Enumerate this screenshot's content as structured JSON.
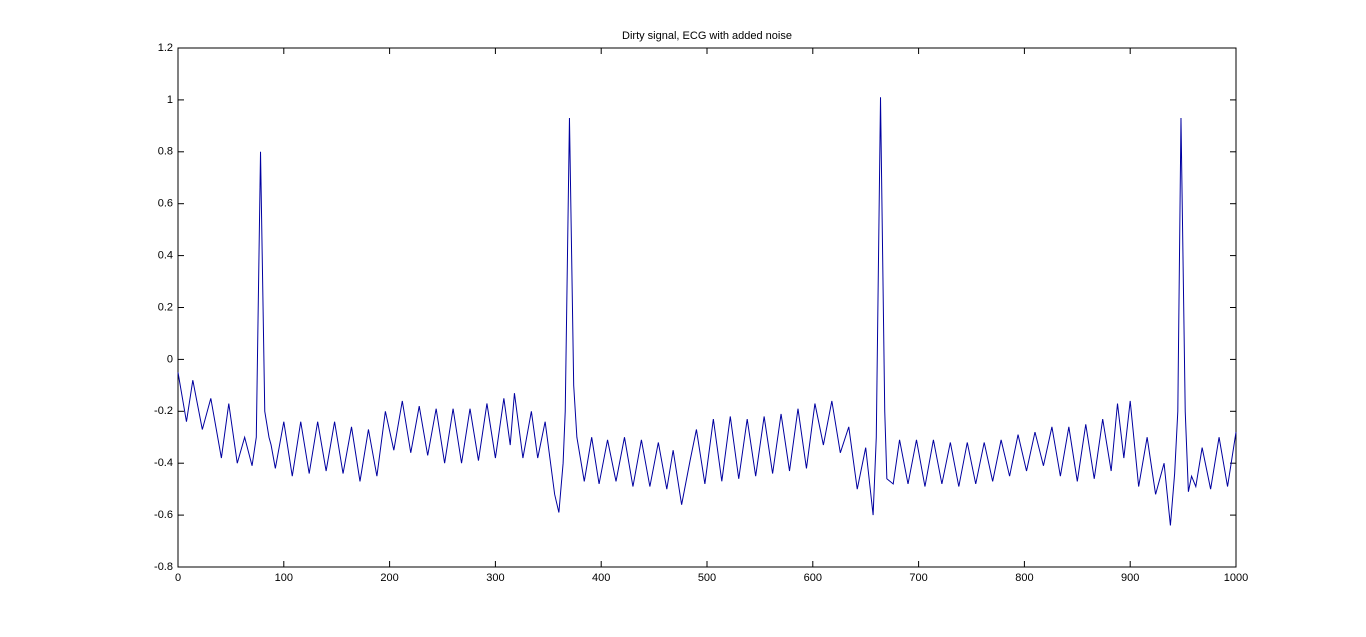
{
  "chart_data": {
    "type": "line",
    "title": "Dirty signal, ECG with added noise",
    "x": [
      0,
      8,
      14,
      23,
      31,
      41,
      48,
      56,
      63,
      70,
      74,
      78,
      82,
      86,
      88,
      92,
      100,
      108,
      116,
      124,
      132,
      140,
      148,
      156,
      164,
      172,
      180,
      188,
      196,
      204,
      212,
      220,
      228,
      236,
      244,
      252,
      260,
      268,
      276,
      284,
      292,
      300,
      308,
      314,
      318,
      326,
      334,
      340,
      347,
      356,
      360,
      364,
      366,
      370,
      374,
      377,
      384,
      391,
      398,
      406,
      414,
      422,
      430,
      438,
      446,
      454,
      462,
      468,
      476,
      484,
      490,
      498,
      506,
      514,
      522,
      530,
      538,
      546,
      554,
      562,
      570,
      578,
      586,
      594,
      602,
      610,
      618,
      626,
      634,
      642,
      650,
      657,
      660,
      664,
      668,
      670,
      676,
      682,
      690,
      698,
      706,
      714,
      722,
      730,
      738,
      746,
      754,
      762,
      770,
      778,
      786,
      794,
      802,
      810,
      818,
      826,
      834,
      842,
      850,
      858,
      866,
      874,
      882,
      888,
      894,
      900,
      908,
      916,
      924,
      932,
      938,
      942,
      945,
      948,
      952,
      955,
      958,
      962,
      968,
      976,
      984,
      992,
      1000
    ],
    "values": [
      -0.05,
      -0.24,
      -0.08,
      -0.27,
      -0.15,
      -0.38,
      -0.17,
      -0.4,
      -0.3,
      -0.41,
      -0.3,
      0.8,
      -0.2,
      -0.3,
      -0.33,
      -0.42,
      -0.24,
      -0.45,
      -0.24,
      -0.44,
      -0.24,
      -0.43,
      -0.24,
      -0.44,
      -0.26,
      -0.47,
      -0.27,
      -0.45,
      -0.2,
      -0.35,
      -0.16,
      -0.36,
      -0.18,
      -0.37,
      -0.19,
      -0.4,
      -0.19,
      -0.4,
      -0.19,
      -0.39,
      -0.17,
      -0.38,
      -0.15,
      -0.33,
      -0.13,
      -0.38,
      -0.2,
      -0.38,
      -0.24,
      -0.52,
      -0.59,
      -0.4,
      -0.2,
      0.93,
      -0.1,
      -0.3,
      -0.47,
      -0.3,
      -0.48,
      -0.31,
      -0.47,
      -0.3,
      -0.49,
      -0.31,
      -0.49,
      -0.32,
      -0.5,
      -0.35,
      -0.56,
      -0.39,
      -0.27,
      -0.48,
      -0.23,
      -0.47,
      -0.22,
      -0.46,
      -0.23,
      -0.45,
      -0.22,
      -0.44,
      -0.21,
      -0.43,
      -0.19,
      -0.42,
      -0.17,
      -0.33,
      -0.16,
      -0.36,
      -0.26,
      -0.5,
      -0.34,
      -0.6,
      -0.3,
      1.01,
      -0.2,
      -0.46,
      -0.48,
      -0.31,
      -0.48,
      -0.31,
      -0.49,
      -0.31,
      -0.48,
      -0.32,
      -0.49,
      -0.32,
      -0.48,
      -0.32,
      -0.47,
      -0.31,
      -0.45,
      -0.29,
      -0.43,
      -0.28,
      -0.41,
      -0.26,
      -0.45,
      -0.26,
      -0.47,
      -0.25,
      -0.46,
      -0.23,
      -0.43,
      -0.17,
      -0.38,
      -0.16,
      -0.49,
      -0.3,
      -0.52,
      -0.4,
      -0.64,
      -0.44,
      -0.2,
      0.93,
      -0.2,
      -0.51,
      -0.45,
      -0.49,
      -0.34,
      -0.5,
      -0.3,
      -0.49,
      -0.28
    ],
    "color": "#0000a0",
    "xlim": [
      0,
      1000
    ],
    "xticks": [
      0,
      100,
      200,
      300,
      400,
      500,
      600,
      700,
      800,
      900,
      1000
    ],
    "ylim": [
      -0.8,
      1.2
    ],
    "yticks": [
      -0.8,
      -0.6,
      -0.4,
      -0.2,
      0,
      0.2,
      0.4,
      0.6,
      0.8,
      1,
      1.2
    ]
  }
}
